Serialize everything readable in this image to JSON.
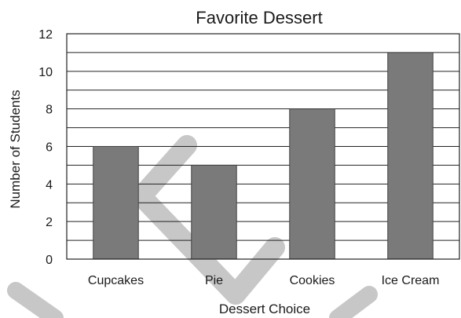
{
  "chart_data": {
    "type": "bar",
    "title": "Favorite Dessert",
    "xlabel": "Dessert Choice",
    "ylabel": "Number of Students",
    "categories": [
      "Cupcakes",
      "Pie",
      "Cookies",
      "Ice Cream"
    ],
    "values": [
      6,
      5,
      8,
      11
    ],
    "ylim": [
      0,
      12
    ],
    "yticks": [
      0,
      2,
      4,
      6,
      8,
      10,
      12
    ],
    "grid": true,
    "bar_color": "#7a7a7a"
  }
}
